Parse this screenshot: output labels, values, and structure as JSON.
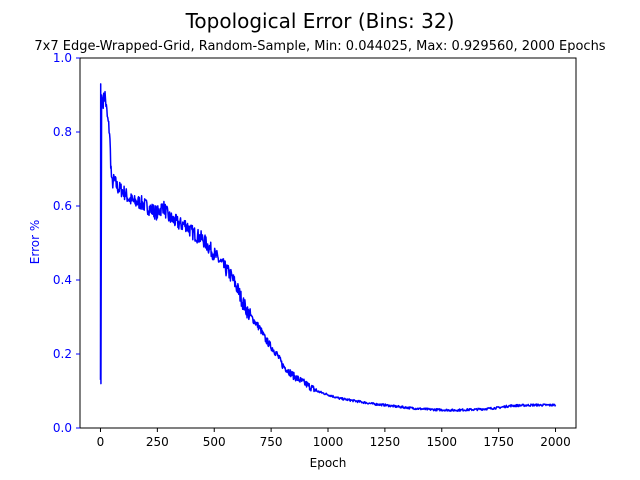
{
  "chart_data": {
    "type": "line",
    "title": "Topological Error (Bins: 32)",
    "subtitle": "7x7 Edge-Wrapped-Grid, Random-Sample, Min: 0.044025, Max: 0.929560, 2000 Epochs",
    "xlabel": "Epoch",
    "ylabel": "Error %",
    "xlim": [
      -90,
      2090
    ],
    "ylim": [
      0,
      1
    ],
    "xticks": [
      0,
      250,
      500,
      750,
      1000,
      1250,
      1500,
      1750,
      2000
    ],
    "yticks": [
      0.0,
      0.2,
      0.4,
      0.6,
      0.8,
      1.0
    ],
    "grid": false,
    "series": [
      {
        "color": "#0000ff",
        "x": [
          0,
          1,
          2,
          5,
          10,
          20,
          30,
          40,
          45,
          50,
          60,
          75,
          100,
          125,
          150,
          175,
          200,
          225,
          250,
          275,
          300,
          325,
          350,
          375,
          400,
          425,
          450,
          475,
          500,
          525,
          550,
          575,
          600,
          625,
          650,
          675,
          700,
          725,
          750,
          775,
          800,
          825,
          850,
          875,
          900,
          925,
          950,
          975,
          1000,
          1050,
          1100,
          1150,
          1200,
          1250,
          1300,
          1350,
          1400,
          1450,
          1500,
          1550,
          1600,
          1650,
          1700,
          1750,
          1800,
          1850,
          1900,
          1950,
          2000
        ],
        "y": [
          0.13,
          0.93,
          0.12,
          0.9,
          0.88,
          0.9,
          0.84,
          0.8,
          0.72,
          0.66,
          0.67,
          0.65,
          0.64,
          0.62,
          0.61,
          0.61,
          0.6,
          0.59,
          0.58,
          0.6,
          0.57,
          0.56,
          0.55,
          0.55,
          0.53,
          0.52,
          0.51,
          0.49,
          0.47,
          0.45,
          0.43,
          0.41,
          0.38,
          0.34,
          0.31,
          0.29,
          0.27,
          0.24,
          0.22,
          0.2,
          0.17,
          0.155,
          0.14,
          0.13,
          0.12,
          0.11,
          0.1,
          0.095,
          0.09,
          0.08,
          0.075,
          0.07,
          0.065,
          0.062,
          0.058,
          0.055,
          0.052,
          0.05,
          0.049,
          0.048,
          0.049,
          0.05,
          0.052,
          0.055,
          0.06,
          0.061,
          0.062,
          0.062,
          0.062
        ]
      }
    ]
  }
}
